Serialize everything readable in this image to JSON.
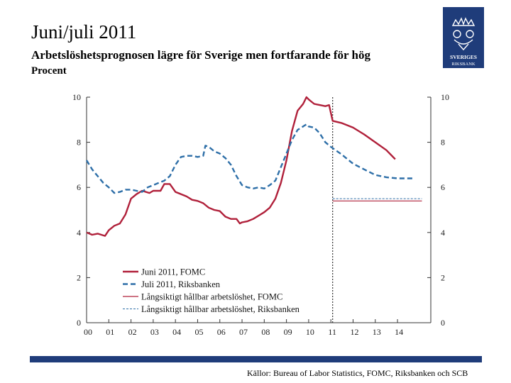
{
  "header": {
    "title": "Juni/juli 2011",
    "subtitle": "Arbetslöshetsprognosen lägre för Sverige men fortfarande för hög",
    "unit": "Procent"
  },
  "logo": {
    "line1": "SVERIGES",
    "line2": "RIKSBANK"
  },
  "footer": {
    "source": "Källor: Bureau of Labor Statistics, FOMC, Riksbanken och SCB"
  },
  "colors": {
    "fomc": "#b0203a",
    "riksbanken": "#2e6fa8",
    "brand": "#1f3c7a"
  },
  "chart_data": {
    "type": "line",
    "xlim": [
      2000,
      2015.5
    ],
    "ylim": [
      0,
      10
    ],
    "x_ticks": [
      {
        "x": 2000,
        "label": "00"
      },
      {
        "x": 2001,
        "label": "01"
      },
      {
        "x": 2002,
        "label": "02"
      },
      {
        "x": 2003,
        "label": "03"
      },
      {
        "x": 2004,
        "label": "04"
      },
      {
        "x": 2005,
        "label": "05"
      },
      {
        "x": 2006,
        "label": "06"
      },
      {
        "x": 2007,
        "label": "07"
      },
      {
        "x": 2008,
        "label": "08"
      },
      {
        "x": 2009,
        "label": "09"
      },
      {
        "x": 2010,
        "label": "10"
      },
      {
        "x": 2011,
        "label": "11"
      },
      {
        "x": 2012,
        "label": "12"
      },
      {
        "x": 2013,
        "label": "13"
      },
      {
        "x": 2014,
        "label": "14"
      }
    ],
    "y_ticks": [
      0,
      2,
      4,
      6,
      8,
      10
    ],
    "forecast_start": 2011.08,
    "grid": false,
    "legend_position": "bottom-left",
    "series": [
      {
        "name": "Juni 2011, FOMC",
        "color": "#b0203a",
        "dash": "solid",
        "points": [
          [
            2000.0,
            4.0
          ],
          [
            2000.25,
            3.9
          ],
          [
            2000.5,
            3.95
          ],
          [
            2000.83,
            3.85
          ],
          [
            2001.0,
            4.1
          ],
          [
            2001.25,
            4.3
          ],
          [
            2001.5,
            4.4
          ],
          [
            2001.75,
            4.8
          ],
          [
            2002.0,
            5.5
          ],
          [
            2002.25,
            5.7
          ],
          [
            2002.5,
            5.85
          ],
          [
            2002.83,
            5.75
          ],
          [
            2003.0,
            5.85
          ],
          [
            2003.33,
            5.85
          ],
          [
            2003.5,
            6.15
          ],
          [
            2003.75,
            6.15
          ],
          [
            2004.0,
            5.8
          ],
          [
            2004.25,
            5.7
          ],
          [
            2004.5,
            5.6
          ],
          [
            2004.75,
            5.45
          ],
          [
            2005.0,
            5.4
          ],
          [
            2005.25,
            5.3
          ],
          [
            2005.5,
            5.1
          ],
          [
            2005.75,
            5.0
          ],
          [
            2006.0,
            4.95
          ],
          [
            2006.25,
            4.7
          ],
          [
            2006.5,
            4.6
          ],
          [
            2006.75,
            4.6
          ],
          [
            2006.9,
            4.4
          ],
          [
            2007.0,
            4.45
          ],
          [
            2007.25,
            4.5
          ],
          [
            2007.5,
            4.6
          ],
          [
            2007.75,
            4.75
          ],
          [
            2008.0,
            4.9
          ],
          [
            2008.25,
            5.1
          ],
          [
            2008.5,
            5.5
          ],
          [
            2008.75,
            6.2
          ],
          [
            2009.0,
            7.2
          ],
          [
            2009.25,
            8.5
          ],
          [
            2009.5,
            9.4
          ],
          [
            2009.75,
            9.7
          ],
          [
            2009.9,
            10.0
          ],
          [
            2010.0,
            9.9
          ],
          [
            2010.25,
            9.7
          ],
          [
            2010.5,
            9.65
          ],
          [
            2010.75,
            9.6
          ],
          [
            2010.92,
            9.65
          ],
          [
            2011.08,
            8.95
          ],
          [
            2011.5,
            8.85
          ],
          [
            2012.0,
            8.65
          ],
          [
            2012.5,
            8.35
          ],
          [
            2013.0,
            8.0
          ],
          [
            2013.5,
            7.65
          ],
          [
            2013.9,
            7.25
          ]
        ]
      },
      {
        "name": "Juli 2011, Riksbanken",
        "color": "#2e6fa8",
        "dash": "dashed",
        "points": [
          [
            2000.0,
            7.2
          ],
          [
            2000.25,
            6.8
          ],
          [
            2000.5,
            6.5
          ],
          [
            2000.75,
            6.2
          ],
          [
            2001.0,
            6.0
          ],
          [
            2001.25,
            5.75
          ],
          [
            2001.5,
            5.8
          ],
          [
            2001.75,
            5.9
          ],
          [
            2002.0,
            5.9
          ],
          [
            2002.25,
            5.85
          ],
          [
            2002.5,
            5.8
          ],
          [
            2002.75,
            6.0
          ],
          [
            2003.0,
            6.1
          ],
          [
            2003.25,
            6.2
          ],
          [
            2003.5,
            6.3
          ],
          [
            2003.75,
            6.5
          ],
          [
            2004.0,
            7.0
          ],
          [
            2004.25,
            7.35
          ],
          [
            2004.5,
            7.4
          ],
          [
            2004.75,
            7.4
          ],
          [
            2005.0,
            7.35
          ],
          [
            2005.25,
            7.4
          ],
          [
            2005.35,
            7.85
          ],
          [
            2005.5,
            7.8
          ],
          [
            2005.75,
            7.6
          ],
          [
            2006.0,
            7.5
          ],
          [
            2006.25,
            7.3
          ],
          [
            2006.5,
            7.0
          ],
          [
            2006.75,
            6.5
          ],
          [
            2007.0,
            6.1
          ],
          [
            2007.25,
            6.0
          ],
          [
            2007.5,
            5.95
          ],
          [
            2007.75,
            6.0
          ],
          [
            2008.0,
            5.95
          ],
          [
            2008.25,
            6.1
          ],
          [
            2008.5,
            6.3
          ],
          [
            2008.75,
            6.9
          ],
          [
            2009.0,
            7.5
          ],
          [
            2009.25,
            8.1
          ],
          [
            2009.5,
            8.55
          ],
          [
            2009.75,
            8.7
          ],
          [
            2009.9,
            8.8
          ],
          [
            2010.0,
            8.7
          ],
          [
            2010.25,
            8.65
          ],
          [
            2010.5,
            8.4
          ],
          [
            2010.75,
            8.0
          ],
          [
            2011.0,
            7.8
          ],
          [
            2011.5,
            7.45
          ],
          [
            2012.0,
            7.05
          ],
          [
            2012.5,
            6.8
          ],
          [
            2013.0,
            6.55
          ],
          [
            2013.5,
            6.45
          ],
          [
            2014.0,
            6.4
          ],
          [
            2014.75,
            6.4
          ]
        ]
      },
      {
        "name": "Långsiktigt hållbar arbetslöshet, FOMC",
        "color": "#b0203a",
        "dash": "solid",
        "points": [
          [
            2011.08,
            5.4
          ],
          [
            2015.1,
            5.4
          ]
        ]
      },
      {
        "name": "Långsiktigt hållbar arbetslöshet, Riksbanken",
        "color": "#2e6fa8",
        "dash": "dashed-thin",
        "points": [
          [
            2011.08,
            5.5
          ],
          [
            2015.1,
            5.5
          ]
        ]
      }
    ]
  }
}
